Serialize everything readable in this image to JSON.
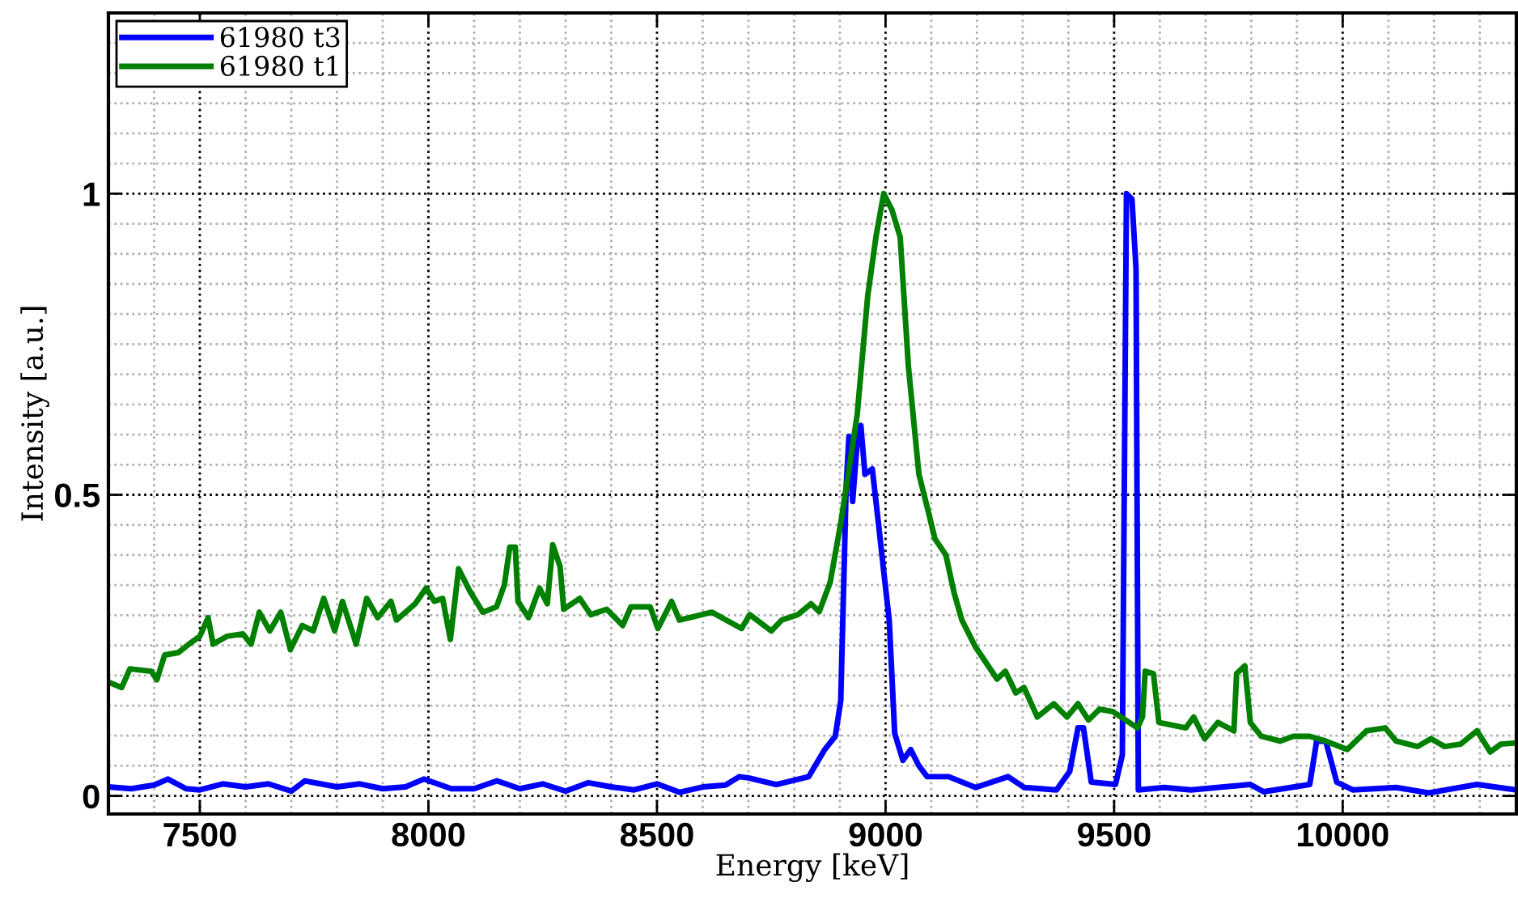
{
  "chart_data": {
    "type": "line",
    "xlabel": "Energy [keV]",
    "ylabel": "Intensity [a.u.]",
    "xlim": [
      7300,
      10380
    ],
    "ylim": [
      -0.03,
      1.3
    ],
    "xticks": [
      {
        "value": 7300,
        "label": null
      },
      {
        "value": 7400,
        "label": null
      },
      7500,
      {
        "value": 7600,
        "label": null
      },
      {
        "value": 7700,
        "label": null
      },
      {
        "value": 7800,
        "label": null
      },
      {
        "value": 7900,
        "label": null
      },
      8000,
      {
        "value": 8100,
        "label": null
      },
      {
        "value": 8200,
        "label": null
      },
      {
        "value": 8300,
        "label": null
      },
      {
        "value": 8400,
        "label": null
      },
      8500,
      {
        "value": 8600,
        "label": null
      },
      {
        "value": 8700,
        "label": null
      },
      {
        "value": 8800,
        "label": null
      },
      {
        "value": 8900,
        "label": null
      },
      9000,
      {
        "value": 9100,
        "label": null
      },
      {
        "value": 9200,
        "label": null
      },
      {
        "value": 9300,
        "label": null
      },
      {
        "value": 9400,
        "label": null
      },
      9500,
      {
        "value": 9600,
        "label": null
      },
      {
        "value": 9700,
        "label": null
      },
      {
        "value": 9800,
        "label": null
      },
      {
        "value": 9900,
        "label": null
      },
      10000,
      {
        "value": 10100,
        "label": null
      },
      {
        "value": 10200,
        "label": null
      },
      {
        "value": 10300,
        "label": null
      }
    ],
    "yticks": [
      0,
      {
        "value": 0.05,
        "label": null
      },
      {
        "value": 0.1,
        "label": null
      },
      {
        "value": 0.15,
        "label": null
      },
      {
        "value": 0.2,
        "label": null
      },
      {
        "value": 0.25,
        "label": null
      },
      {
        "value": 0.3,
        "label": null
      },
      {
        "value": 0.35,
        "label": null
      },
      {
        "value": 0.4,
        "label": null
      },
      {
        "value": 0.45,
        "label": null
      },
      0.5,
      {
        "value": 0.55,
        "label": null
      },
      {
        "value": 0.6,
        "label": null
      },
      {
        "value": 0.65,
        "label": null
      },
      {
        "value": 0.7,
        "label": null
      },
      {
        "value": 0.75,
        "label": null
      },
      {
        "value": 0.8,
        "label": null
      },
      {
        "value": 0.85,
        "label": null
      },
      {
        "value": 0.9,
        "label": null
      },
      {
        "value": 0.95,
        "label": null
      },
      1,
      {
        "value": 1.05,
        "label": null
      },
      {
        "value": 1.1,
        "label": null
      },
      {
        "value": 1.15,
        "label": null
      },
      {
        "value": 1.2,
        "label": null
      },
      {
        "value": 1.25,
        "label": null
      }
    ],
    "grid": true,
    "legend": "top left",
    "marker": "none",
    "line_style": "solid",
    "series": [
      {
        "name": "61980 t3",
        "color": "#0000ff",
        "x": [
          7300,
          7350,
          7400,
          7430,
          7470,
          7500,
          7550,
          7600,
          7650,
          7700,
          7730,
          7800,
          7850,
          7900,
          7950,
          7990,
          8050,
          8100,
          8150,
          8200,
          8250,
          8300,
          8350,
          8400,
          8450,
          8500,
          8550,
          8600,
          8650,
          8680,
          8700,
          8761,
          8832,
          8867,
          8890,
          8902,
          8914,
          8920,
          8928,
          8938,
          8946,
          8955,
          8971,
          8985,
          8996,
          9008,
          9020,
          9038,
          9055,
          9073,
          9091,
          9138,
          9197,
          9268,
          9303,
          9374,
          9403,
          9421,
          9433,
          9450,
          9503,
          9518,
          9527,
          9539,
          9548,
          9553,
          9610,
          9668,
          9798,
          9827,
          9928,
          9943,
          9963,
          9987,
          10022,
          10117,
          10188,
          10294,
          10379
        ],
        "values": [
          0.015,
          0.012,
          0.018,
          0.028,
          0.012,
          0.01,
          0.02,
          0.015,
          0.02,
          0.008,
          0.025,
          0.015,
          0.02,
          0.012,
          0.015,
          0.028,
          0.012,
          0.012,
          0.025,
          0.012,
          0.02,
          0.008,
          0.022,
          0.015,
          0.01,
          0.02,
          0.006,
          0.015,
          0.018,
          0.032,
          0.03,
          0.019,
          0.032,
          0.077,
          0.099,
          0.158,
          0.516,
          0.597,
          0.489,
          0.588,
          0.615,
          0.534,
          0.543,
          0.449,
          0.373,
          0.292,
          0.104,
          0.059,
          0.077,
          0.05,
          0.032,
          0.032,
          0.014,
          0.032,
          0.014,
          0.01,
          0.041,
          0.113,
          0.113,
          0.023,
          0.019,
          0.068,
          1.0,
          0.991,
          0.875,
          0.01,
          0.014,
          0.01,
          0.019,
          0.007,
          0.019,
          0.091,
          0.091,
          0.023,
          0.01,
          0.014,
          0.005,
          0.019,
          0.01
        ]
      },
      {
        "name": "61980 t1",
        "color": "#008000",
        "x": [
          7300,
          7329,
          7347,
          7394,
          7406,
          7423,
          7453,
          7476,
          7500,
          7518,
          7529,
          7559,
          7594,
          7612,
          7630,
          7653,
          7677,
          7698,
          7724,
          7748,
          7771,
          7795,
          7812,
          7842,
          7865,
          7889,
          7918,
          7930,
          7971,
          7995,
          8013,
          8031,
          8048,
          8066,
          8090,
          8119,
          8149,
          8166,
          8178,
          8190,
          8196,
          8219,
          8243,
          8260,
          8272,
          8288,
          8296,
          8331,
          8355,
          8390,
          8425,
          8443,
          8485,
          8502,
          8532,
          8549,
          8620,
          8685,
          8703,
          8750,
          8773,
          8808,
          8837,
          8855,
          8879,
          8902,
          8938,
          8961,
          8979,
          8996,
          9014,
          9032,
          9050,
          9073,
          9091,
          9108,
          9132,
          9150,
          9167,
          9197,
          9244,
          9262,
          9285,
          9303,
          9332,
          9368,
          9397,
          9421,
          9444,
          9468,
          9497,
          9551,
          9562,
          9568,
          9586,
          9598,
          9657,
          9674,
          9698,
          9727,
          9762,
          9768,
          9786,
          9798,
          9822,
          9863,
          9892,
          9928,
          9963,
          10010,
          10052,
          10093,
          10117,
          10164,
          10193,
          10223,
          10258,
          10294,
          10323,
          10346,
          10379
        ],
        "values": [
          0.189,
          0.18,
          0.211,
          0.207,
          0.193,
          0.234,
          0.238,
          0.252,
          0.265,
          0.296,
          0.252,
          0.265,
          0.269,
          0.252,
          0.305,
          0.274,
          0.305,
          0.243,
          0.283,
          0.274,
          0.328,
          0.274,
          0.323,
          0.252,
          0.328,
          0.296,
          0.323,
          0.292,
          0.319,
          0.345,
          0.323,
          0.328,
          0.26,
          0.377,
          0.341,
          0.305,
          0.314,
          0.35,
          0.413,
          0.413,
          0.323,
          0.296,
          0.345,
          0.319,
          0.417,
          0.381,
          0.31,
          0.328,
          0.301,
          0.31,
          0.283,
          0.314,
          0.314,
          0.278,
          0.323,
          0.292,
          0.305,
          0.278,
          0.301,
          0.274,
          0.292,
          0.301,
          0.319,
          0.306,
          0.355,
          0.453,
          0.633,
          0.83,
          0.928,
          1.0,
          0.973,
          0.928,
          0.713,
          0.534,
          0.48,
          0.427,
          0.4,
          0.337,
          0.292,
          0.247,
          0.194,
          0.207,
          0.171,
          0.18,
          0.131,
          0.153,
          0.131,
          0.153,
          0.126,
          0.144,
          0.14,
          0.113,
          0.131,
          0.207,
          0.203,
          0.122,
          0.113,
          0.131,
          0.095,
          0.122,
          0.108,
          0.203,
          0.216,
          0.122,
          0.099,
          0.091,
          0.099,
          0.099,
          0.091,
          0.077,
          0.108,
          0.113,
          0.091,
          0.082,
          0.095,
          0.082,
          0.086,
          0.108,
          0.073,
          0.086,
          0.088
        ]
      }
    ]
  }
}
